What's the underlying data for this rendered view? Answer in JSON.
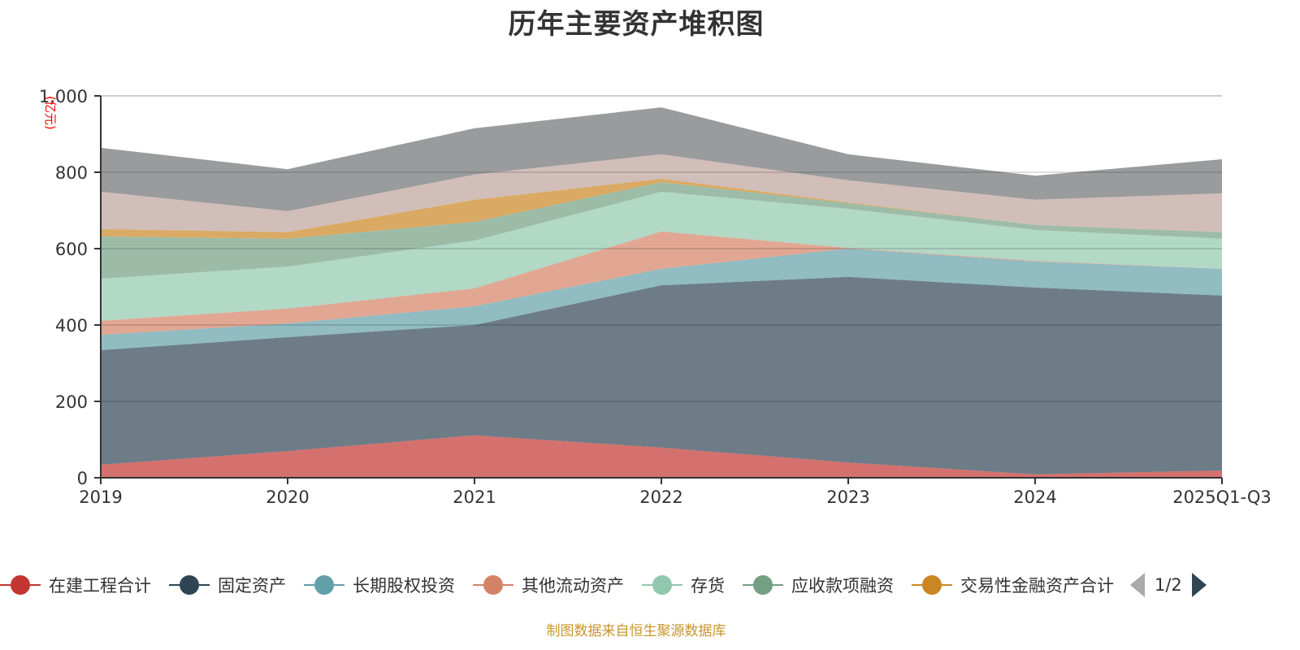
{
  "chart_data": {
    "type": "area",
    "stacked": true,
    "title": "历年主要资产堆积图",
    "xlabel": "",
    "ylabel": "(亿元)",
    "ylim": [
      0,
      1000
    ],
    "yticks": [
      0,
      200,
      400,
      600,
      800,
      1000
    ],
    "ytick_labels": [
      "0",
      "200",
      "400",
      "600",
      "800",
      "1,000"
    ],
    "grid": true,
    "categories": [
      "2019",
      "2020",
      "2021",
      "2022",
      "2023",
      "2024",
      "2025Q1-Q3"
    ],
    "series": [
      {
        "name": "在建工程合计",
        "color": "#c23531",
        "values": [
          34,
          70,
          111,
          79,
          40,
          9,
          19
        ]
      },
      {
        "name": "固定资产",
        "color": "#2f4554",
        "values": [
          300,
          298,
          289,
          425,
          486,
          489,
          458
        ]
      },
      {
        "name": "长期股权投资",
        "color": "#61a0a8",
        "values": [
          40,
          36,
          49,
          43,
          74,
          68,
          70
        ]
      },
      {
        "name": "其他流动资产",
        "color": "#d48265",
        "values": [
          37,
          39,
          47,
          98,
          2,
          2,
          0
        ]
      },
      {
        "name": "存货",
        "color": "#91c7ae",
        "values": [
          110,
          110,
          125,
          104,
          102,
          81,
          79
        ]
      },
      {
        "name": "应收款项融资",
        "color": "#749f83",
        "values": [
          111,
          73,
          49,
          25,
          15,
          13,
          17
        ]
      },
      {
        "name": "交易性金融资产合计",
        "color": "#ca8622",
        "values": [
          19,
          17,
          58,
          9,
          2,
          0,
          0
        ]
      },
      {
        "name": "",
        "color": "#bda29a",
        "values": [
          98,
          55,
          66,
          64,
          58,
          66,
          102
        ]
      },
      {
        "name": "",
        "color": "#6e7074",
        "values": [
          115,
          110,
          121,
          123,
          68,
          63,
          89
        ]
      }
    ],
    "legend_position": "bottom",
    "legend_page": "1/2"
  },
  "legend": {
    "items": [
      {
        "label": "在建工程合计",
        "color": "#c23531"
      },
      {
        "label": "固定资产",
        "color": "#2f4554"
      },
      {
        "label": "长期股权投资",
        "color": "#61a0a8"
      },
      {
        "label": "其他流动资产",
        "color": "#d48265"
      },
      {
        "label": "存货",
        "color": "#91c7ae"
      },
      {
        "label": "应收款项融资",
        "color": "#749f83"
      },
      {
        "label": "交易性金融资产合计",
        "color": "#ca8622"
      }
    ],
    "page": "1/2",
    "prev_icon": "triangle-left-icon",
    "next_icon": "triangle-right-icon"
  },
  "source_note": "制图数据来自恒生聚源数据库"
}
